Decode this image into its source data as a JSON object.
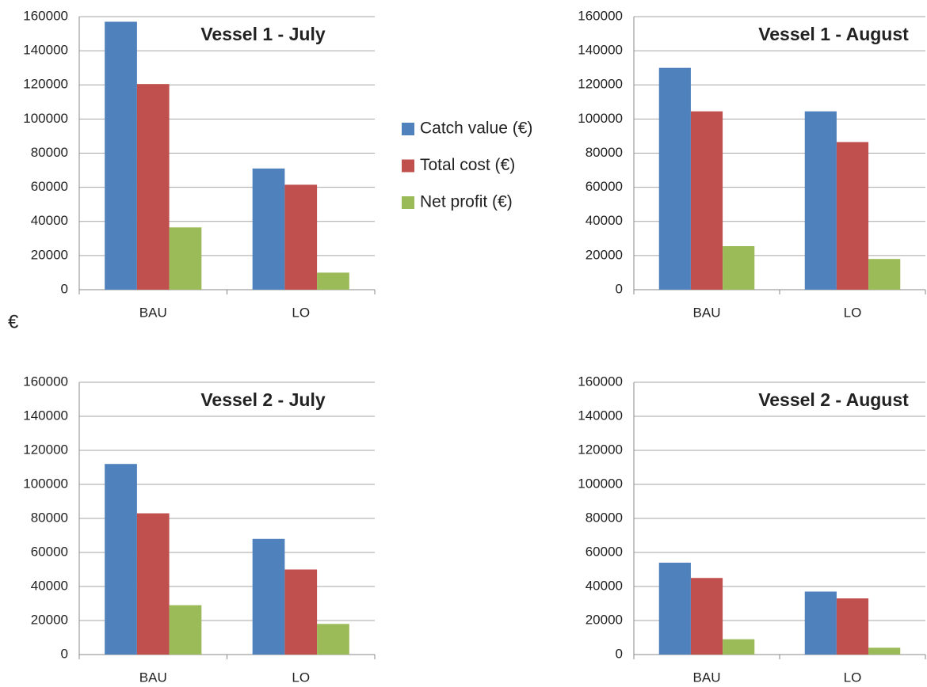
{
  "chart_data": [
    {
      "type": "bar",
      "title": "Vessel 1 - July",
      "ylabel": "€",
      "categories": [
        "BAU",
        "LO"
      ],
      "series": [
        {
          "name": "Catch value (€)",
          "color": "#4f81bd",
          "values": [
            157000,
            71000
          ]
        },
        {
          "name": "Total cost (€)",
          "color": "#c0504d",
          "values": [
            120500,
            61500
          ]
        },
        {
          "name": "Net profit (€)",
          "color": "#9bbb59",
          "values": [
            36500,
            10000
          ]
        }
      ],
      "ylim": [
        0,
        160000
      ],
      "yticks": [
        0,
        20000,
        40000,
        60000,
        80000,
        100000,
        120000,
        140000,
        160000
      ],
      "grid": true
    },
    {
      "type": "bar",
      "title": "Vessel 1 - August",
      "categories": [
        "BAU",
        "LO"
      ],
      "series": [
        {
          "name": "Catch value (€)",
          "color": "#4f81bd",
          "values": [
            130000,
            104500
          ]
        },
        {
          "name": "Total cost (€)",
          "color": "#c0504d",
          "values": [
            104500,
            86500
          ]
        },
        {
          "name": "Net profit (€)",
          "color": "#9bbb59",
          "values": [
            25500,
            18000
          ]
        }
      ],
      "ylim": [
        0,
        160000
      ],
      "yticks": [
        0,
        20000,
        40000,
        60000,
        80000,
        100000,
        120000,
        140000,
        160000
      ],
      "grid": true
    },
    {
      "type": "bar",
      "title": "Vessel 2 - July",
      "categories": [
        "BAU",
        "LO"
      ],
      "series": [
        {
          "name": "Catch value (€)",
          "color": "#4f81bd",
          "values": [
            112000,
            68000
          ]
        },
        {
          "name": "Total cost (€)",
          "color": "#c0504d",
          "values": [
            83000,
            50000
          ]
        },
        {
          "name": "Net profit (€)",
          "color": "#9bbb59",
          "values": [
            29000,
            18000
          ]
        }
      ],
      "ylim": [
        0,
        160000
      ],
      "yticks": [
        0,
        20000,
        40000,
        60000,
        80000,
        100000,
        120000,
        140000,
        160000
      ],
      "grid": true
    },
    {
      "type": "bar",
      "title": "Vessel 2 - August",
      "categories": [
        "BAU",
        "LO"
      ],
      "series": [
        {
          "name": "Catch value (€)",
          "color": "#4f81bd",
          "values": [
            54000,
            37000
          ]
        },
        {
          "name": "Total cost (€)",
          "color": "#c0504d",
          "values": [
            45000,
            33000
          ]
        },
        {
          "name": "Net profit (€)",
          "color": "#9bbb59",
          "values": [
            9000,
            4000
          ]
        }
      ],
      "ylim": [
        0,
        160000
      ],
      "yticks": [
        0,
        20000,
        40000,
        60000,
        80000,
        100000,
        120000,
        140000,
        160000
      ],
      "grid": true
    }
  ]
}
